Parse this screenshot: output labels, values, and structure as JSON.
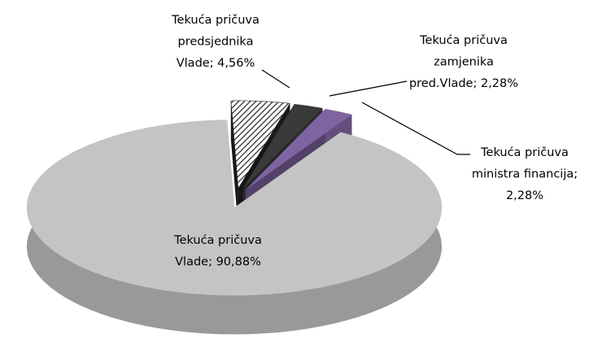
{
  "chart_data": {
    "type": "pie3d",
    "labels": [
      [
        "Tekuća pričuva",
        "predsjednika",
        "Vlade; 4,56%"
      ],
      [
        "Tekuća pričuva",
        "zamjenika",
        "pred.Vlade; 2,28%"
      ],
      [
        "Tekuća pričuva",
        "ministra financija;",
        "2,28%"
      ],
      [
        "Tekuća pričuva",
        "Vlade; 90,88%"
      ]
    ],
    "values": [
      4.56,
      2.28,
      2.28,
      90.88
    ],
    "colors": [
      "#ffffff",
      "#3a3a3a",
      "#8064a2",
      "#c4c4c4"
    ],
    "hatched": [
      true,
      false,
      false,
      false
    ]
  }
}
